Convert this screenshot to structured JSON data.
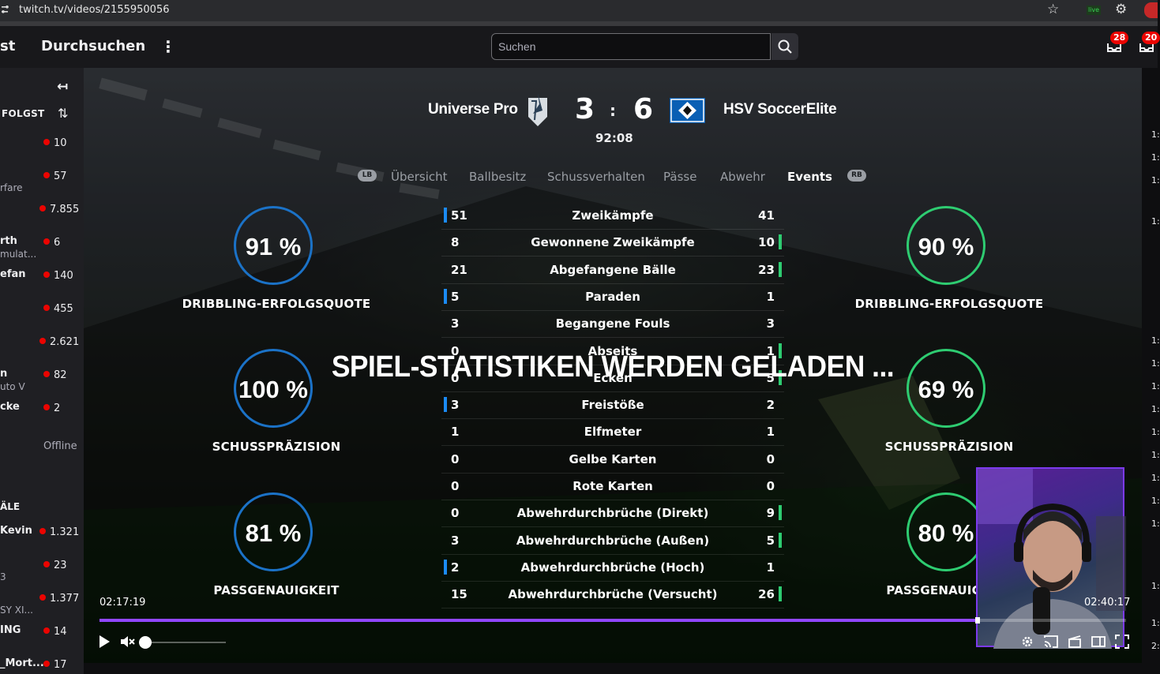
{
  "browser": {
    "url": "twitch.tv/videos/2155950056"
  },
  "topnav": {
    "cut_label": "st",
    "browse_label": "Durchsuchen",
    "more_label": "⋮",
    "search_placeholder": "Suchen",
    "notifications_badge": "28",
    "inbox_badge": "20"
  },
  "sidebar": {
    "followed_heading": "FOLGST",
    "channels": [
      {
        "name": "",
        "sub": "",
        "viewers": "10"
      },
      {
        "name": "",
        "sub": "rfare",
        "viewers": "57"
      },
      {
        "name": "",
        "sub": "",
        "viewers": "7.855"
      },
      {
        "name": "rth",
        "sub": "mulat...",
        "viewers": "6"
      },
      {
        "name": "efan",
        "sub": "",
        "viewers": "140"
      },
      {
        "name": "",
        "sub": "",
        "viewers": "455"
      },
      {
        "name": "",
        "sub": "",
        "viewers": "2.621"
      },
      {
        "name": "n",
        "sub": "uto V",
        "viewers": "82"
      },
      {
        "name": "cke",
        "sub": "",
        "viewers": "2"
      }
    ],
    "offline_label": "Offline",
    "recommended_heading": "ÄLE",
    "recommended": [
      {
        "name": "Kevin",
        "sub": "",
        "viewers": "1.321"
      },
      {
        "name": "",
        "sub": "3",
        "viewers": "23"
      },
      {
        "name": "",
        "sub": "SY XI...",
        "viewers": "1.377"
      },
      {
        "name": "ING",
        "sub": "",
        "viewers": "14"
      },
      {
        "name": "_Mort...",
        "sub": "",
        "viewers": "17"
      }
    ]
  },
  "match": {
    "home_team": "Universe Pro",
    "away_team": "HSV SoccerElite",
    "home_score": "3",
    "away_score": "6",
    "separator": ":",
    "clock": "92:08",
    "lb_label": "LB",
    "rb_label": "RB",
    "tabs": [
      "Übersicht",
      "Ballbesitz",
      "Schussverhalten",
      "Pässe",
      "Abwehr",
      "Events"
    ],
    "active_tab": "Events"
  },
  "rings_left": [
    {
      "value": "91 %",
      "label": "DRIBBLING-ERFOLGSQUOTE"
    },
    {
      "value": "100 %",
      "label": "SCHUSSPRÄZISION"
    },
    {
      "value": "81 %",
      "label": "PASSGENAUIGKEIT"
    }
  ],
  "rings_right": [
    {
      "value": "90 %",
      "label": "DRIBBLING-ERFOLGSQUOTE"
    },
    {
      "value": "69 %",
      "label": "SCHUSSPRÄZISION"
    },
    {
      "value": "80 %",
      "label": "PASSGENAUIGKEIT"
    }
  ],
  "stats": [
    {
      "home": "51",
      "label": "Zweikämpfe",
      "away": "41",
      "lead": "home"
    },
    {
      "home": "8",
      "label": "Gewonnene Zweikämpfe",
      "away": "10",
      "lead": "away"
    },
    {
      "home": "21",
      "label": "Abgefangene Bälle",
      "away": "23",
      "lead": "away"
    },
    {
      "home": "5",
      "label": "Paraden",
      "away": "1",
      "lead": "home"
    },
    {
      "home": "3",
      "label": "Begangene Fouls",
      "away": "3",
      "lead": ""
    },
    {
      "home": "0",
      "label": "Abseits",
      "away": "1",
      "lead": "away"
    },
    {
      "home": "0",
      "label": "Ecken",
      "away": "5",
      "lead": "away"
    },
    {
      "home": "3",
      "label": "Freistöße",
      "away": "2",
      "lead": "home"
    },
    {
      "home": "1",
      "label": "Elfmeter",
      "away": "1",
      "lead": ""
    },
    {
      "home": "0",
      "label": "Gelbe Karten",
      "away": "0",
      "lead": ""
    },
    {
      "home": "0",
      "label": "Rote Karten",
      "away": "0",
      "lead": ""
    },
    {
      "home": "0",
      "label": "Abwehrdurchbrüche (Direkt)",
      "away": "9",
      "lead": "away"
    },
    {
      "home": "3",
      "label": "Abwehrdurchbrüche (Außen)",
      "away": "5",
      "lead": "away"
    },
    {
      "home": "2",
      "label": "Abwehrdurchbrüche (Hoch)",
      "away": "1",
      "lead": "home"
    },
    {
      "home": "15",
      "label": "Abwehrdurchbrüche (Versucht)",
      "away": "26",
      "lead": "away"
    }
  ],
  "loading_text": "SPIEL-STATISTIKEN WERDEN GELADEN ...",
  "player": {
    "elapsed": "02:17:19",
    "duration": "02:40:17",
    "progress_fraction": 0.855,
    "volume_fraction": 0.0
  },
  "right_strip": [
    "1:",
    "1:",
    "1:",
    "1:",
    "1:",
    "1:",
    "1:",
    "1:",
    "1:",
    "1:",
    "1:",
    "1:",
    "1:",
    "1:",
    "1:",
    "2:"
  ],
  "colors": {
    "accent": "#9147ff",
    "home_bar": "#1b8bf5",
    "away_bar": "#2ecc71",
    "live": "#eb0400"
  }
}
